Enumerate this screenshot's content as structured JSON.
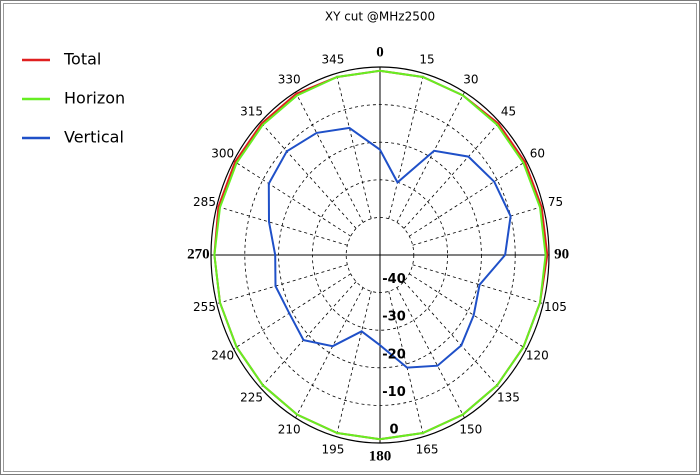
{
  "chart_data": {
    "type": "polar",
    "title": "XY cut @MHz2500",
    "theta": [
      0,
      15,
      30,
      45,
      60,
      75,
      90,
      105,
      120,
      135,
      150,
      165,
      180,
      195,
      210,
      225,
      240,
      255,
      270,
      285,
      300,
      315,
      330,
      345
    ],
    "series": [
      {
        "name": "Total",
        "color": "#e02020",
        "values": [
          -1,
          -1,
          -1,
          -0.5,
          -0.5,
          -0.5,
          -0.5,
          -1,
          -1,
          -1,
          -1,
          -1,
          -1,
          -1,
          -1,
          -1,
          -1,
          -1,
          -1,
          -0.5,
          -0.5,
          -0.5,
          -0.5,
          -1
        ]
      },
      {
        "name": "Horizon",
        "color": "#66ee22",
        "values": [
          -1,
          -1,
          -1,
          -1,
          -1,
          -1,
          -1,
          -1,
          -1,
          -1,
          -1,
          -1,
          -1,
          -1,
          -1,
          -1,
          -1,
          -1,
          -1,
          -1,
          -1,
          -1,
          -1,
          -1
        ]
      },
      {
        "name": "Vertical",
        "color": "#1f50c8",
        "values": [
          -22,
          -30,
          -18,
          -13,
          -11,
          -10,
          -13,
          -19.5,
          -18,
          -16,
          -16,
          -19,
          -26,
          -29,
          -22,
          -18,
          -19,
          -18,
          -19,
          -16,
          -12,
          -11,
          -12.5,
          -15
        ]
      }
    ],
    "rlim": [
      -50,
      0
    ],
    "rticks": [
      -40,
      -30,
      -20,
      -10,
      0
    ],
    "thetaticks": [
      0,
      15,
      30,
      45,
      60,
      75,
      90,
      105,
      120,
      135,
      150,
      165,
      180,
      195,
      210,
      225,
      240,
      255,
      270,
      285,
      300,
      315,
      330,
      345
    ],
    "grid": true
  }
}
